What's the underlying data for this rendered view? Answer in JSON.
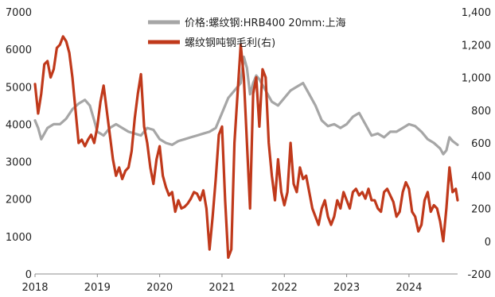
{
  "chart_data": {
    "type": "line",
    "legend": {
      "placement": "top-center",
      "items": [
        {
          "label": "价格:螺纹钢:HRB400 20mm:上海",
          "color": "#a6a6a6"
        },
        {
          "label": "螺纹钢吨钢毛利(右)",
          "color": "#c0391b"
        }
      ]
    },
    "x_ticks": [
      "2018",
      "2019",
      "2020",
      "2021",
      "2022",
      "2023",
      "2024"
    ],
    "xlim": [
      2018,
      2024.78
    ],
    "y_left": {
      "ticks": [
        "0",
        "1000",
        "2000",
        "3000",
        "4000",
        "5000",
        "6000",
        "7000"
      ],
      "ylim": [
        0,
        7000
      ]
    },
    "y_right": {
      "ticks": [
        "-200",
        "0",
        "200",
        "400",
        "600",
        "800",
        "1,000",
        "1,200",
        "1,400"
      ],
      "ylim": [
        -200,
        1400
      ]
    },
    "series": [
      {
        "name": "价格:螺纹钢:HRB400 20mm:上海",
        "axis": "left",
        "color": "#a6a6a6",
        "x": [
          2018.0,
          2018.05,
          2018.1,
          2018.2,
          2018.3,
          2018.4,
          2018.5,
          2018.6,
          2018.7,
          2018.8,
          2018.88,
          2018.95,
          2019.0,
          2019.1,
          2019.2,
          2019.3,
          2019.4,
          2019.5,
          2019.6,
          2019.7,
          2019.8,
          2019.9,
          2020.0,
          2020.1,
          2020.2,
          2020.3,
          2020.4,
          2020.5,
          2020.6,
          2020.7,
          2020.8,
          2020.9,
          2021.0,
          2021.1,
          2021.2,
          2021.3,
          2021.35,
          2021.4,
          2021.45,
          2021.5,
          2021.55,
          2021.6,
          2021.7,
          2021.8,
          2021.9,
          2022.0,
          2022.1,
          2022.2,
          2022.3,
          2022.4,
          2022.5,
          2022.6,
          2022.7,
          2022.8,
          2022.9,
          2023.0,
          2023.1,
          2023.2,
          2023.3,
          2023.4,
          2023.5,
          2023.6,
          2023.7,
          2023.8,
          2023.9,
          2024.0,
          2024.1,
          2024.2,
          2024.3,
          2024.4,
          2024.5,
          2024.55,
          2024.6,
          2024.65,
          2024.7,
          2024.78
        ],
        "values": [
          4100,
          3900,
          3600,
          3900,
          4000,
          4000,
          4150,
          4400,
          4550,
          4650,
          4500,
          4100,
          3800,
          3700,
          3900,
          4000,
          3900,
          3800,
          3750,
          3700,
          3900,
          3850,
          3600,
          3500,
          3450,
          3550,
          3600,
          3650,
          3700,
          3750,
          3800,
          3900,
          4300,
          4700,
          4900,
          5100,
          5800,
          5500,
          4800,
          5100,
          5300,
          5200,
          4900,
          4600,
          4500,
          4700,
          4900,
          5000,
          5100,
          4800,
          4500,
          4100,
          3950,
          4000,
          3900,
          4000,
          4200,
          4300,
          4000,
          3700,
          3750,
          3650,
          3800,
          3800,
          3900,
          4000,
          3950,
          3800,
          3600,
          3500,
          3350,
          3200,
          3300,
          3650,
          3550,
          3450
        ]
      },
      {
        "name": "螺纹钢吨钢毛利(右)",
        "axis": "right",
        "color": "#c0391b",
        "x": [
          2018.0,
          2018.05,
          2018.1,
          2018.15,
          2018.2,
          2018.25,
          2018.3,
          2018.35,
          2018.4,
          2018.45,
          2018.5,
          2018.55,
          2018.6,
          2018.65,
          2018.7,
          2018.75,
          2018.8,
          2018.85,
          2018.9,
          2018.95,
          2019.0,
          2019.05,
          2019.1,
          2019.15,
          2019.2,
          2019.25,
          2019.3,
          2019.35,
          2019.4,
          2019.45,
          2019.5,
          2019.55,
          2019.6,
          2019.65,
          2019.7,
          2019.75,
          2019.8,
          2019.85,
          2019.9,
          2019.95,
          2020.0,
          2020.05,
          2020.1,
          2020.15,
          2020.2,
          2020.25,
          2020.3,
          2020.35,
          2020.4,
          2020.45,
          2020.5,
          2020.55,
          2020.6,
          2020.65,
          2020.7,
          2020.75,
          2020.8,
          2020.85,
          2020.9,
          2020.95,
          2021.0,
          2021.05,
          2021.1,
          2021.15,
          2021.2,
          2021.25,
          2021.3,
          2021.35,
          2021.4,
          2021.45,
          2021.5,
          2021.55,
          2021.6,
          2021.65,
          2021.7,
          2021.75,
          2021.8,
          2021.85,
          2021.9,
          2021.95,
          2022.0,
          2022.05,
          2022.1,
          2022.15,
          2022.2,
          2022.25,
          2022.3,
          2022.35,
          2022.4,
          2022.45,
          2022.5,
          2022.55,
          2022.6,
          2022.65,
          2022.7,
          2022.75,
          2022.8,
          2022.85,
          2022.9,
          2022.95,
          2023.0,
          2023.05,
          2023.1,
          2023.15,
          2023.2,
          2023.25,
          2023.3,
          2023.35,
          2023.4,
          2023.45,
          2023.5,
          2023.55,
          2023.6,
          2023.65,
          2023.7,
          2023.75,
          2023.8,
          2023.85,
          2023.9,
          2023.95,
          2024.0,
          2024.05,
          2024.1,
          2024.15,
          2024.2,
          2024.25,
          2024.3,
          2024.35,
          2024.4,
          2024.45,
          2024.5,
          2024.55,
          2024.6,
          2024.65,
          2024.7,
          2024.75,
          2024.78
        ],
        "values": [
          960,
          780,
          900,
          1080,
          1100,
          1000,
          1050,
          1180,
          1200,
          1250,
          1220,
          1150,
          1000,
          800,
          600,
          620,
          580,
          620,
          650,
          600,
          700,
          850,
          950,
          800,
          650,
          500,
          400,
          450,
          380,
          430,
          450,
          550,
          750,
          900,
          1020,
          700,
          600,
          450,
          350,
          500,
          580,
          400,
          330,
          280,
          300,
          180,
          250,
          200,
          210,
          230,
          260,
          300,
          290,
          250,
          310,
          200,
          -50,
          150,
          380,
          650,
          700,
          250,
          -100,
          -50,
          600,
          900,
          1200,
          1000,
          600,
          200,
          900,
          1000,
          700,
          1050,
          1000,
          600,
          400,
          250,
          500,
          300,
          220,
          300,
          600,
          350,
          300,
          450,
          380,
          400,
          300,
          200,
          150,
          100,
          200,
          250,
          150,
          100,
          150,
          250,
          200,
          300,
          250,
          200,
          300,
          320,
          280,
          300,
          260,
          320,
          250,
          250,
          200,
          180,
          300,
          320,
          280,
          240,
          150,
          180,
          300,
          360,
          320,
          180,
          150,
          60,
          100,
          250,
          300,
          180,
          220,
          200,
          120,
          0,
          200,
          450,
          300,
          320,
          250
        ]
      }
    ]
  }
}
